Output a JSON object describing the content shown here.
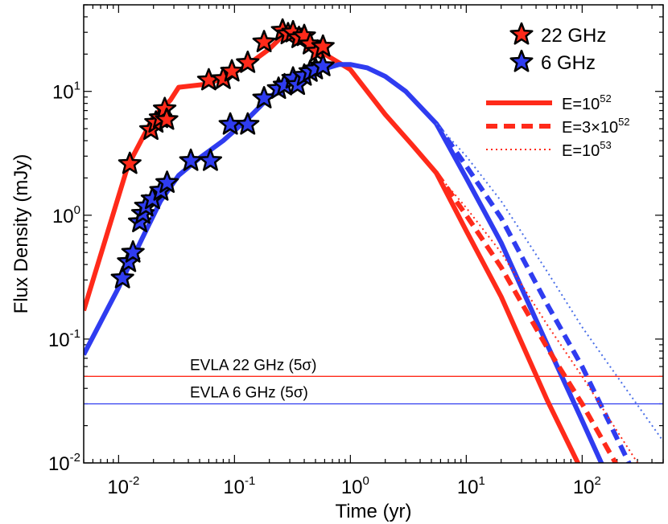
{
  "chart_data": {
    "type": "line",
    "xscale": "log",
    "yscale": "log",
    "xlabel": "Time  (yr)",
    "ylabel": "Flux Density  (mJy)",
    "xlim": [
      0.005,
      500
    ],
    "ylim": [
      0.01,
      50
    ],
    "x_ticks": [
      {
        "value": 0.01,
        "base": "10",
        "exp": "-2"
      },
      {
        "value": 0.1,
        "base": "10",
        "exp": "-1"
      },
      {
        "value": 1,
        "base": "10",
        "exp": "0"
      },
      {
        "value": 10,
        "base": "10",
        "exp": "1"
      },
      {
        "value": 100,
        "base": "10",
        "exp": "2"
      }
    ],
    "y_ticks": [
      {
        "value": 0.01,
        "base": "10",
        "exp": "-2"
      },
      {
        "value": 0.1,
        "base": "10",
        "exp": "-1"
      },
      {
        "value": 1,
        "base": "10",
        "exp": "0"
      },
      {
        "value": 10,
        "base": "10",
        "exp": "1"
      }
    ],
    "colors": {
      "red": "#ff2a1a",
      "blue": "#2f3cf0",
      "red_thin": "#ff2a1a",
      "blue_thin": "#4a6fe8"
    },
    "series": [
      {
        "name": "22 GHz model E=10^52",
        "color": "red",
        "style": "solid",
        "width": 6,
        "x": [
          0.005,
          0.012,
          0.02,
          0.028,
          0.033,
          0.06,
          0.12,
          0.2,
          0.28,
          0.4,
          0.6,
          1.0,
          2.0,
          3.5,
          5.5,
          10,
          20,
          50,
          100
        ],
        "y": [
          0.17,
          2.5,
          6.2,
          8.5,
          10.8,
          11.5,
          15.5,
          22,
          30,
          25,
          20,
          15,
          6.5,
          3.6,
          2.2,
          0.75,
          0.22,
          0.032,
          0.0085
        ]
      },
      {
        "name": "6 GHz model E=10^52",
        "color": "blue",
        "style": "solid",
        "width": 6,
        "x": [
          0.005,
          0.01,
          0.016,
          0.023,
          0.033,
          0.05,
          0.08,
          0.13,
          0.2,
          0.3,
          0.5,
          0.8,
          1.0,
          1.4,
          2.0,
          3.0,
          5.5,
          10,
          20,
          50,
          100,
          150
        ],
        "y": [
          0.075,
          0.26,
          0.65,
          1.3,
          2.1,
          2.9,
          4.0,
          6.0,
          9.0,
          11.5,
          14.5,
          16.5,
          16.5,
          15.5,
          13.2,
          10,
          5.5,
          2.0,
          0.6,
          0.09,
          0.022,
          0.0095
        ]
      },
      {
        "name": "22 GHz model E=3x10^52",
        "color": "red",
        "style": "dashed",
        "width": 6,
        "x": [
          5.5,
          10,
          20,
          50,
          100,
          200
        ],
        "y": [
          2.2,
          1.0,
          0.38,
          0.085,
          0.03,
          0.0095
        ]
      },
      {
        "name": "6 GHz model E=3x10^52",
        "color": "blue",
        "style": "dashed",
        "width": 6,
        "x": [
          5.5,
          10,
          20,
          50,
          100,
          260
        ],
        "y": [
          5.5,
          2.5,
          0.95,
          0.19,
          0.06,
          0.0095
        ]
      },
      {
        "name": "22 GHz model E=10^53",
        "color": "red_thin",
        "style": "dotted",
        "width": 2,
        "x": [
          5.5,
          10,
          20,
          50,
          100,
          300
        ],
        "y": [
          2.2,
          1.15,
          0.5,
          0.13,
          0.05,
          0.01
        ]
      },
      {
        "name": "6 GHz model E=10^53",
        "color": "blue_thin",
        "style": "dotted",
        "width": 2,
        "x": [
          5.5,
          10,
          20,
          50,
          100,
          200,
          500
        ],
        "y": [
          5.5,
          3.0,
          1.3,
          0.35,
          0.125,
          0.05,
          0.015
        ]
      }
    ],
    "points": [
      {
        "name": "22 GHz",
        "color": "red",
        "x": [
          0.0125,
          0.019,
          0.021,
          0.023,
          0.025,
          0.026,
          0.06,
          0.08,
          0.095,
          0.13,
          0.18,
          0.26,
          0.29,
          0.32,
          0.36,
          0.4,
          0.45,
          0.52,
          0.58
        ],
        "y": [
          2.6,
          4.9,
          5.6,
          6.1,
          7.2,
          5.9,
          12.3,
          12.6,
          14.5,
          17.0,
          25,
          31,
          29,
          30,
          27,
          28,
          24,
          21,
          23
        ]
      },
      {
        "name": "6 GHz",
        "color": "blue",
        "x": [
          0.0108,
          0.0122,
          0.0133,
          0.0152,
          0.0162,
          0.0172,
          0.0196,
          0.0232,
          0.0262,
          0.042,
          0.062,
          0.092,
          0.13,
          0.18,
          0.24,
          0.27,
          0.32,
          0.35,
          0.4,
          0.45,
          0.5,
          0.58
        ],
        "y": [
          0.31,
          0.42,
          0.5,
          0.88,
          1.03,
          1.18,
          1.35,
          1.58,
          1.83,
          2.75,
          2.75,
          5.4,
          5.4,
          8.8,
          10.5,
          11.2,
          12.7,
          11.3,
          13.4,
          14.4,
          15.1,
          16.0
        ]
      }
    ],
    "limits": [
      {
        "label": "EVLA 22 GHz (5σ)",
        "value": 0.05,
        "color": "red"
      },
      {
        "label": "EVLA 6 GHz (5σ)",
        "value": 0.03,
        "color": "blue"
      }
    ],
    "legend_markers": [
      {
        "label": "22 GHz",
        "color": "red"
      },
      {
        "label": "6 GHz",
        "color": "blue"
      }
    ],
    "legend_lines": [
      {
        "prefix": "E=10",
        "sup": "52",
        "suffix": "",
        "style": "solid"
      },
      {
        "prefix": "E=3×10",
        "sup": "52",
        "suffix": "",
        "style": "dashed"
      },
      {
        "prefix": "E=10",
        "sup": "53",
        "suffix": "",
        "style": "dotted"
      }
    ],
    "legend_placement": "top-right"
  }
}
